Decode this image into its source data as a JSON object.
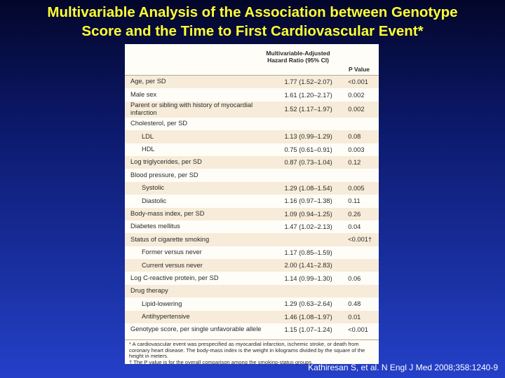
{
  "header": {
    "title": "Multivariable Analysis of the Association between Genotype Score and the Time to First Cardiovascular Event*"
  },
  "table": {
    "columns": [
      "Multivariable-Adjusted Hazard Ratio (95% CI)",
      "P Value"
    ],
    "rows": [
      {
        "label": "Age, per SD",
        "hr": "1.77 (1.52–2.07)",
        "p": "<0.001"
      },
      {
        "label": "Male sex",
        "hr": "1.61 (1.20–2.17)",
        "p": "0.002"
      },
      {
        "label": "Parent or sibling with history of myocardial infarction",
        "hr": "1.52 (1.17–1.97)",
        "p": "0.002"
      },
      {
        "label": "Cholesterol, per SD",
        "children": [
          {
            "label": "LDL",
            "hr": "1.13 (0.99–1.29)",
            "p": "0.08"
          },
          {
            "label": "HDL",
            "hr": "0.75 (0.61–0.91)",
            "p": "0.003"
          }
        ]
      },
      {
        "label": "Log triglycerides, per SD",
        "hr": "0.87 (0.73–1.04)",
        "p": "0.12"
      },
      {
        "label": "Blood pressure, per SD",
        "children": [
          {
            "label": "Systolic",
            "hr": "1.29 (1.08–1.54)",
            "p": "0.005"
          },
          {
            "label": "Diastolic",
            "hr": "1.16 (0.97–1.38)",
            "p": "0.11"
          }
        ]
      },
      {
        "label": "Body-mass index, per SD",
        "hr": "1.09 (0.94–1.25)",
        "p": "0.26"
      },
      {
        "label": "Diabetes mellitus",
        "hr": "1.47 (1.02–2.13)",
        "p": "0.04"
      },
      {
        "label": "Status of cigarette smoking",
        "p": "<0.001†",
        "children": [
          {
            "label": "Former versus never",
            "hr": "1.17 (0.85–1.59)"
          },
          {
            "label": "Current versus never",
            "hr": "2.00 (1.41–2.83)"
          }
        ]
      },
      {
        "label": "Log C-reactive protein, per SD",
        "hr": "1.14 (0.99–1.30)",
        "p": "0.06"
      },
      {
        "label": "Drug therapy",
        "children": [
          {
            "label": "Lipid-lowering",
            "hr": "1.29 (0.63–2.64)",
            "p": "0.48"
          },
          {
            "label": "Antihypertensive",
            "hr": "1.46 (1.08–1.97)",
            "p": "0.01"
          }
        ]
      },
      {
        "label": "Genotype score, per single unfavorable allele",
        "hr": "1.15 (1.07–1.24)",
        "p": "<0.001"
      }
    ],
    "footnotes": [
      "* A cardiovascular event was prespecified as myocardial infarction, ischemic stroke, or death from coronary heart disease. The body-mass index is the weight in kilograms divided by the square of the height in meters.",
      "† The P value is for the overall comparison among the smoking-status groups."
    ]
  },
  "citation": "Kathiresan S, et al. N Engl J Med 2008;358:1240-9"
}
